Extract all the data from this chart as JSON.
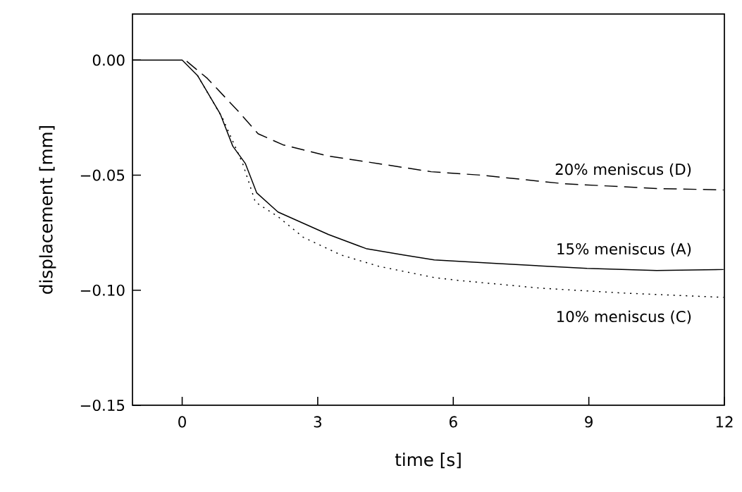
{
  "chart_data": {
    "type": "line",
    "xlabel": "time  [s]",
    "ylabel": "displacement  [mm]",
    "xlim": [
      -1.1,
      12
    ],
    "ylim": [
      -0.15,
      0.02
    ],
    "xticks": [
      0,
      3,
      6,
      9,
      12
    ],
    "yticks": [
      {
        "value": 0,
        "label": "0.00"
      },
      {
        "value": -0.05,
        "label": "−0.05"
      },
      {
        "value": -0.1,
        "label": "−0.10"
      },
      {
        "value": -0.15,
        "label": "−0.15"
      }
    ],
    "grid": false,
    "series": [
      {
        "name": "15% meniscus (A)",
        "color": "#000000",
        "line_style": "solid",
        "x": [
          -1.1,
          -0.5,
          0,
          0.34,
          0.84,
          1.12,
          1.4,
          1.65,
          2.12,
          2.68,
          3.24,
          4.07,
          4.9,
          5.58,
          6.88,
          8.96,
          10.5,
          11.98
        ],
        "values": [
          0,
          0,
          0,
          -0.0067,
          -0.0233,
          -0.0374,
          -0.045,
          -0.0577,
          -0.066,
          -0.0709,
          -0.0758,
          -0.0819,
          -0.0847,
          -0.0868,
          -0.0883,
          -0.0905,
          -0.0914,
          -0.091
        ]
      },
      {
        "name": "10% meniscus (C)",
        "color": "#000000",
        "line_style": "dotted",
        "x": [
          0.34,
          0.9,
          1.34,
          1.62,
          2.12,
          2.68,
          3.52,
          4.35,
          5.58,
          6.1,
          7.93,
          9.74,
          11.98
        ],
        "values": [
          -0.0067,
          -0.0255,
          -0.045,
          -0.0617,
          -0.068,
          -0.077,
          -0.0847,
          -0.0896,
          -0.0945,
          -0.0957,
          -0.0991,
          -0.1012,
          -0.1031
        ]
      },
      {
        "name": "20% meniscus (D)",
        "color": "#000000",
        "line_style": "dashed",
        "x": [
          0.1,
          0.56,
          1.23,
          1.68,
          2.23,
          3.24,
          4.35,
          5.51,
          6.62,
          8.44,
          10.5,
          11.98
        ],
        "values": [
          -0.0005,
          -0.008,
          -0.022,
          -0.032,
          -0.0368,
          -0.0417,
          -0.045,
          -0.0485,
          -0.05,
          -0.0537,
          -0.0558,
          -0.0564
        ]
      }
    ]
  }
}
